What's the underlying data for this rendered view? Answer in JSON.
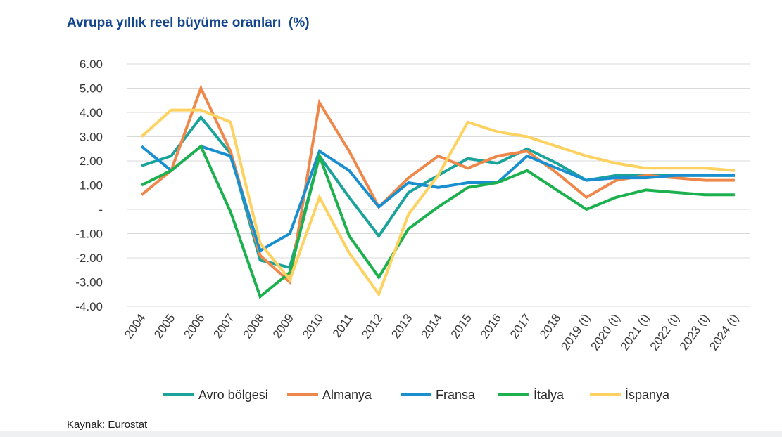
{
  "title": "Avrupa yıllık reel büyüme oranları  (%)",
  "source": "Kaynak: Eurostat",
  "chart_data": {
    "type": "line",
    "title": "Avrupa yıllık reel büyüme oranları  (%)",
    "xlabel": "",
    "ylabel": "",
    "ylim": [
      -4,
      6
    ],
    "grid": true,
    "legend_position": "bottom",
    "categories": [
      "2004",
      "2005",
      "2006",
      "2007",
      "2008",
      "2009",
      "2010",
      "2011",
      "2012",
      "2013",
      "2014",
      "2015",
      "2016",
      "2017",
      "2018",
      "2019 (t)",
      "2020 (t)",
      "2021 (t)",
      "2022 (t)",
      "2023 (t)",
      "2024 (t)"
    ],
    "y_ticks": [
      {
        "value": 6,
        "label": "6.00"
      },
      {
        "value": 5,
        "label": "5.00"
      },
      {
        "value": 4,
        "label": "4.00"
      },
      {
        "value": 3,
        "label": "3.00"
      },
      {
        "value": 2,
        "label": "2.00"
      },
      {
        "value": 1,
        "label": "1.00"
      },
      {
        "value": 0,
        "label": "-"
      },
      {
        "value": -1,
        "label": "-1.00"
      },
      {
        "value": -2,
        "label": "-2.00"
      },
      {
        "value": -3,
        "label": "-3.00"
      },
      {
        "value": -4,
        "label": "-4.00"
      }
    ],
    "series": [
      {
        "name": "Avro bölgesi",
        "color": "#1aa39a",
        "values": [
          1.8,
          2.2,
          3.8,
          2.3,
          -2.1,
          -2.4,
          2.2,
          0.5,
          -1.1,
          0.7,
          1.4,
          2.1,
          1.9,
          2.5,
          1.9,
          1.2,
          1.4,
          1.4,
          1.4,
          1.4,
          1.4
        ]
      },
      {
        "name": "Almanya",
        "color": "#f0874a",
        "values": [
          0.6,
          1.6,
          5.0,
          2.4,
          -1.9,
          -3.0,
          4.4,
          2.4,
          0.1,
          1.3,
          2.2,
          1.7,
          2.2,
          2.4,
          1.5,
          0.5,
          1.2,
          1.4,
          1.3,
          1.2,
          1.2
        ]
      },
      {
        "name": "Fransa",
        "color": "#1a8fd0",
        "values": [
          2.6,
          1.6,
          2.6,
          2.2,
          -1.7,
          -1.0,
          2.4,
          1.6,
          0.1,
          1.1,
          0.9,
          1.1,
          1.1,
          2.2,
          1.7,
          1.2,
          1.3,
          1.3,
          1.4,
          1.4,
          1.4
        ]
      },
      {
        "name": "İtalya",
        "color": "#1db04f",
        "values": [
          1.0,
          1.6,
          2.6,
          -0.1,
          -3.6,
          -2.6,
          2.2,
          -1.1,
          -2.8,
          -0.8,
          0.1,
          0.9,
          1.1,
          1.6,
          0.8,
          0.0,
          0.5,
          0.8,
          0.7,
          0.6,
          0.6
        ]
      },
      {
        "name": "İspanya",
        "color": "#fdd260",
        "values": [
          3.0,
          4.1,
          4.1,
          3.6,
          -1.4,
          -2.9,
          0.5,
          -1.8,
          -3.5,
          -0.2,
          1.4,
          3.6,
          3.2,
          3.0,
          2.6,
          2.2,
          1.9,
          1.7,
          1.7,
          1.7,
          1.6
        ]
      }
    ]
  }
}
